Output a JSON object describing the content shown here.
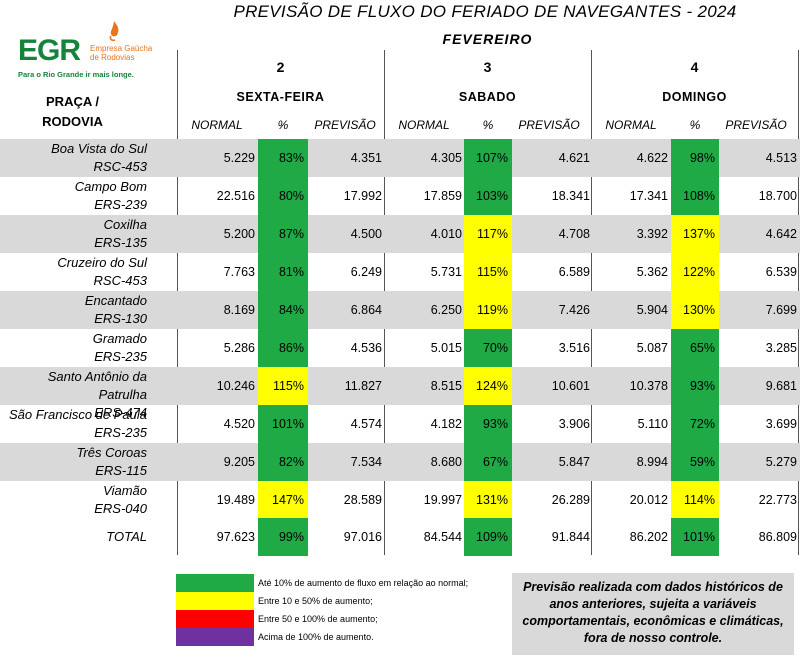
{
  "title": "PREVISÃO DE FLUXO DO FERIADO DE NAVEGANTES - 2024",
  "logo": {
    "short": "EGR",
    "name_line1": "Empresa Gaúcha",
    "name_line2": "de Rodovias",
    "tagline": "Para o Rio Grande ir mais longe."
  },
  "row_header": {
    "line1": "PRAÇA /",
    "line2": "RODOVIA"
  },
  "month": "FEVEREIRO",
  "days": [
    {
      "num": "2",
      "name": "SEXTA-FEIRA"
    },
    {
      "num": "3",
      "name": "SABADO"
    },
    {
      "num": "4",
      "name": "DOMINGO"
    }
  ],
  "col_headers": [
    "NORMAL",
    "%",
    "PREVISÃO"
  ],
  "colors": {
    "green": "#1faa45",
    "yellow": "#ffff00",
    "red": "#ff0000",
    "purple": "#7030a0",
    "shade": "#d9d9d9"
  },
  "rows": [
    {
      "name1": "Boa Vista do Sul",
      "name2": "RSC-453",
      "v": [
        [
          "5.229",
          "83%",
          "4.351",
          "green"
        ],
        [
          "4.305",
          "107%",
          "4.621",
          "green"
        ],
        [
          "4.622",
          "98%",
          "4.513",
          "green"
        ]
      ]
    },
    {
      "name1": "Campo Bom",
      "name2": "ERS-239",
      "v": [
        [
          "22.516",
          "80%",
          "17.992",
          "green"
        ],
        [
          "17.859",
          "103%",
          "18.341",
          "green"
        ],
        [
          "17.341",
          "108%",
          "18.700",
          "green"
        ]
      ]
    },
    {
      "name1": "Coxilha",
      "name2": "ERS-135",
      "v": [
        [
          "5.200",
          "87%",
          "4.500",
          "green"
        ],
        [
          "4.010",
          "117%",
          "4.708",
          "yellow"
        ],
        [
          "3.392",
          "137%",
          "4.642",
          "yellow"
        ]
      ]
    },
    {
      "name1": "Cruzeiro do Sul",
      "name2": "RSC-453",
      "v": [
        [
          "7.763",
          "81%",
          "6.249",
          "green"
        ],
        [
          "5.731",
          "115%",
          "6.589",
          "yellow"
        ],
        [
          "5.362",
          "122%",
          "6.539",
          "yellow"
        ]
      ]
    },
    {
      "name1": "Encantado",
      "name2": "ERS-130",
      "v": [
        [
          "8.169",
          "84%",
          "6.864",
          "green"
        ],
        [
          "6.250",
          "119%",
          "7.426",
          "yellow"
        ],
        [
          "5.904",
          "130%",
          "7.699",
          "yellow"
        ]
      ]
    },
    {
      "name1": "Gramado",
      "name2": "ERS-235",
      "v": [
        [
          "5.286",
          "86%",
          "4.536",
          "green"
        ],
        [
          "5.015",
          "70%",
          "3.516",
          "green"
        ],
        [
          "5.087",
          "65%",
          "3.285",
          "green"
        ]
      ]
    },
    {
      "name1": "Santo Antônio da Patrulha",
      "name2": "ERS-474",
      "v": [
        [
          "10.246",
          "115%",
          "11.827",
          "yellow"
        ],
        [
          "8.515",
          "124%",
          "10.601",
          "yellow"
        ],
        [
          "10.378",
          "93%",
          "9.681",
          "green"
        ]
      ]
    },
    {
      "name1": "São Francisco de Paula",
      "name2": "ERS-235",
      "v": [
        [
          "4.520",
          "101%",
          "4.574",
          "green"
        ],
        [
          "4.182",
          "93%",
          "3.906",
          "green"
        ],
        [
          "5.110",
          "72%",
          "3.699",
          "green"
        ]
      ]
    },
    {
      "name1": "Três Coroas",
      "name2": "ERS-115",
      "v": [
        [
          "9.205",
          "82%",
          "7.534",
          "green"
        ],
        [
          "8.680",
          "67%",
          "5.847",
          "green"
        ],
        [
          "8.994",
          "59%",
          "5.279",
          "green"
        ]
      ]
    },
    {
      "name1": "Viamão",
      "name2": "ERS-040",
      "v": [
        [
          "19.489",
          "147%",
          "28.589",
          "yellow"
        ],
        [
          "19.997",
          "131%",
          "26.289",
          "yellow"
        ],
        [
          "20.012",
          "114%",
          "22.773",
          "yellow"
        ]
      ]
    }
  ],
  "total": {
    "label": "TOTAL",
    "v": [
      [
        "97.623",
        "99%",
        "97.016",
        "green"
      ],
      [
        "84.544",
        "109%",
        "91.844",
        "green"
      ],
      [
        "86.202",
        "101%",
        "86.809",
        "green"
      ]
    ]
  },
  "legend": [
    {
      "color": "green",
      "text": "Até 10% de aumento de fluxo em relação ao normal;"
    },
    {
      "color": "yellow",
      "text": "Entre 10 e 50% de aumento;"
    },
    {
      "color": "red",
      "text": "Entre 50 e 100% de aumento;"
    },
    {
      "color": "purple",
      "text": "Acima de 100% de aumento."
    }
  ],
  "note": "Previsão realizada com dados históricos de anos anteriores, sujeita a variáveis comportamentais, econômicas e climáticas, fora de nosso controle."
}
